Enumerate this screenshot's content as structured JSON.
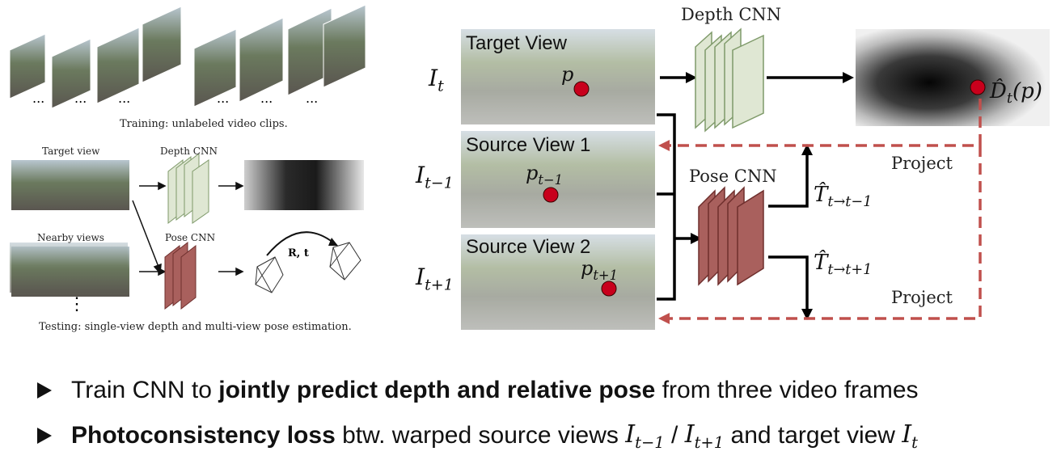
{
  "left_figure": {
    "training_caption": "Training: unlabeled video clips.",
    "ellipsis": "...",
    "target_view_label": "Target view",
    "depth_cnn_label": "Depth CNN",
    "nearby_views_label": "Nearby views",
    "pose_cnn_label": "Pose CNN",
    "rt_label": "R, t",
    "vertical_dots": "⋮",
    "testing_caption": "Testing: single-view depth and multi-view pose estimation."
  },
  "right_figure": {
    "target_view_title": "Target View",
    "source_view_1_title": "Source View 1",
    "source_view_2_title": "Source View 2",
    "i_t": "I",
    "i_t_sub": "t",
    "i_tm1": "I",
    "i_tm1_sub": "t−1",
    "i_tp1": "I",
    "i_tp1_sub": "t+1",
    "p_label": "p",
    "p_tm1": "p",
    "p_tm1_sub": "t−1",
    "p_tp1": "p",
    "p_tp1_sub": "t+1",
    "depth_cnn_title": "Depth CNN",
    "pose_cnn_title": "Pose CNN",
    "depth_output": "D̂",
    "depth_output_sub": "t",
    "depth_output_arg": "(p)",
    "pose_1": "T̂",
    "pose_1_sub": "t→t−1",
    "pose_2": "T̂",
    "pose_2_sub": "t→t+1",
    "project_top": "Project",
    "project_bottom": "Project"
  },
  "bullets": [
    {
      "pre": "Train CNN to ",
      "bold": "jointly predict depth and relative pose",
      "post": " from three video frames"
    },
    {
      "bold": "Photoconsistency loss",
      "mid": " btw. warped source views ",
      "m1": "I",
      "m1_sub": "t−1",
      "slash": " / ",
      "m2": "I",
      "m2_sub": "t+1",
      "mid2": " and target view ",
      "m3": "I",
      "m3_sub": "t"
    }
  ],
  "colors": {
    "green_layer": "#dfe7d3",
    "green_stroke": "#7f9a6a",
    "red_layer": "#a9605d",
    "red_stroke": "#6f2f2d",
    "dashed_red": "#c0504d",
    "dot_red": "#c8001c"
  }
}
